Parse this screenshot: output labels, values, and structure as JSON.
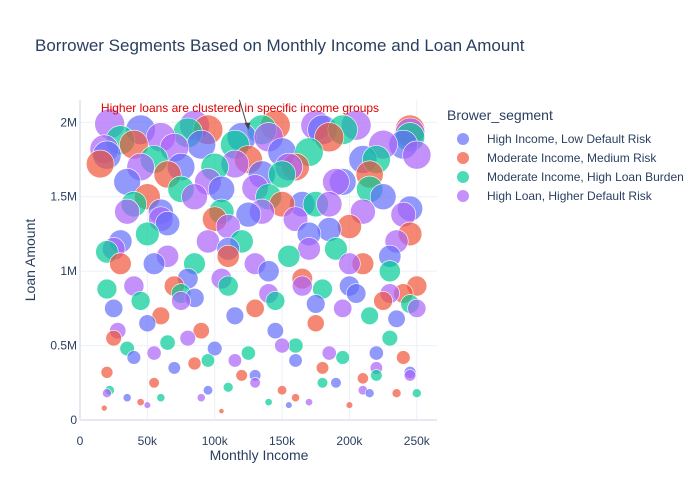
{
  "chart_data": {
    "type": "scatter",
    "title": "Borrower Segments Based on Monthly Income and Loan Amount",
    "xlabel": "Monthly Income",
    "ylabel": "Loan Amount",
    "xlim": [
      0,
      265000
    ],
    "ylim": [
      0,
      2150000
    ],
    "x_ticks": [
      {
        "v": 0,
        "label": "0"
      },
      {
        "v": 50000,
        "label": "50k"
      },
      {
        "v": 100000,
        "label": "100k"
      },
      {
        "v": 150000,
        "label": "150k"
      },
      {
        "v": 200000,
        "label": "200k"
      },
      {
        "v": 250000,
        "label": "250k"
      }
    ],
    "y_ticks": [
      {
        "v": 0,
        "label": "0"
      },
      {
        "v": 500000,
        "label": "0.5M"
      },
      {
        "v": 1000000,
        "label": "1M"
      },
      {
        "v": 1500000,
        "label": "1.5M"
      },
      {
        "v": 2000000,
        "label": "2M"
      }
    ],
    "grid": true,
    "bubble_size_by": "loan_amount",
    "legend": {
      "title": "Brower_segment",
      "placement": "right"
    },
    "annotation": {
      "text": "Higher loans are clustered in specific income groups",
      "x": 125000,
      "y": 1950000,
      "color": "#e00000"
    },
    "series": [
      {
        "name": "High Income, Low Default Risk",
        "color": "#636efa",
        "points": [
          [
            20000,
            1780000
          ],
          [
            35000,
            1600000
          ],
          [
            45000,
            1950000
          ],
          [
            60000,
            1400000
          ],
          [
            75000,
            1700000
          ],
          [
            90000,
            1850000
          ],
          [
            105000,
            1550000
          ],
          [
            120000,
            1900000
          ],
          [
            135000,
            1650000
          ],
          [
            150000,
            1800000
          ],
          [
            165000,
            1450000
          ],
          [
            180000,
            1950000
          ],
          [
            195000,
            1600000
          ],
          [
            210000,
            1750000
          ],
          [
            225000,
            1500000
          ],
          [
            240000,
            1850000
          ],
          [
            30000,
            1200000
          ],
          [
            55000,
            1050000
          ],
          [
            80000,
            950000
          ],
          [
            110000,
            1150000
          ],
          [
            140000,
            1000000
          ],
          [
            170000,
            1250000
          ],
          [
            200000,
            900000
          ],
          [
            230000,
            1100000
          ],
          [
            25000,
            750000
          ],
          [
            50000,
            650000
          ],
          [
            85000,
            820000
          ],
          [
            115000,
            700000
          ],
          [
            145000,
            600000
          ],
          [
            175000,
            780000
          ],
          [
            205000,
            850000
          ],
          [
            235000,
            680000
          ],
          [
            40000,
            420000
          ],
          [
            70000,
            350000
          ],
          [
            100000,
            480000
          ],
          [
            130000,
            300000
          ],
          [
            160000,
            400000
          ],
          [
            190000,
            250000
          ],
          [
            220000,
            450000
          ],
          [
            245000,
            320000
          ],
          [
            35000,
            150000
          ],
          [
            95000,
            200000
          ],
          [
            155000,
            100000
          ],
          [
            215000,
            180000
          ],
          [
            65000,
            1320000
          ],
          [
            125000,
            1380000
          ],
          [
            185000,
            1280000
          ],
          [
            245000,
            1420000
          ]
        ]
      },
      {
        "name": "Moderate Income, Medium Risk",
        "color": "#ef553b",
        "points": [
          [
            15000,
            1720000
          ],
          [
            40000,
            1850000
          ],
          [
            65000,
            1650000
          ],
          [
            95000,
            1950000
          ],
          [
            125000,
            1750000
          ],
          [
            145000,
            1980000
          ],
          [
            160000,
            1700000
          ],
          [
            185000,
            1900000
          ],
          [
            215000,
            1650000
          ],
          [
            245000,
            1950000
          ],
          [
            50000,
            1500000
          ],
          [
            100000,
            1350000
          ],
          [
            150000,
            1450000
          ],
          [
            200000,
            1300000
          ],
          [
            245000,
            1250000
          ],
          [
            30000,
            1050000
          ],
          [
            70000,
            900000
          ],
          [
            110000,
            1100000
          ],
          [
            165000,
            950000
          ],
          [
            210000,
            1050000
          ],
          [
            240000,
            850000
          ],
          [
            25000,
            550000
          ],
          [
            60000,
            700000
          ],
          [
            90000,
            600000
          ],
          [
            130000,
            750000
          ],
          [
            175000,
            650000
          ],
          [
            225000,
            800000
          ],
          [
            250000,
            900000
          ],
          [
            20000,
            320000
          ],
          [
            55000,
            250000
          ],
          [
            85000,
            380000
          ],
          [
            120000,
            300000
          ],
          [
            150000,
            200000
          ],
          [
            180000,
            350000
          ],
          [
            210000,
            280000
          ],
          [
            240000,
            420000
          ],
          [
            18000,
            80000
          ],
          [
            45000,
            120000
          ],
          [
            105000,
            60000
          ],
          [
            160000,
            150000
          ],
          [
            200000,
            100000
          ],
          [
            235000,
            180000
          ]
        ]
      },
      {
        "name": "Moderate Income, High Loan Burden",
        "color": "#00cc96",
        "points": [
          [
            30000,
            1880000
          ],
          [
            55000,
            1750000
          ],
          [
            80000,
            1930000
          ],
          [
            100000,
            1700000
          ],
          [
            115000,
            1850000
          ],
          [
            135000,
            1950000
          ],
          [
            150000,
            1650000
          ],
          [
            170000,
            1800000
          ],
          [
            195000,
            1950000
          ],
          [
            220000,
            1750000
          ],
          [
            245000,
            1900000
          ],
          [
            40000,
            1450000
          ],
          [
            75000,
            1550000
          ],
          [
            105000,
            1400000
          ],
          [
            140000,
            1500000
          ],
          [
            175000,
            1450000
          ],
          [
            215000,
            1550000
          ],
          [
            20000,
            1130000
          ],
          [
            50000,
            1250000
          ],
          [
            85000,
            1050000
          ],
          [
            120000,
            1200000
          ],
          [
            155000,
            1100000
          ],
          [
            190000,
            1150000
          ],
          [
            230000,
            1000000
          ],
          [
            20000,
            880000
          ],
          [
            45000,
            800000
          ],
          [
            75000,
            850000
          ],
          [
            110000,
            900000
          ],
          [
            145000,
            800000
          ],
          [
            180000,
            880000
          ],
          [
            215000,
            700000
          ],
          [
            245000,
            780000
          ],
          [
            35000,
            480000
          ],
          [
            65000,
            520000
          ],
          [
            95000,
            400000
          ],
          [
            125000,
            450000
          ],
          [
            160000,
            500000
          ],
          [
            195000,
            420000
          ],
          [
            230000,
            550000
          ],
          [
            22000,
            200000
          ],
          [
            60000,
            150000
          ],
          [
            110000,
            220000
          ],
          [
            140000,
            120000
          ],
          [
            180000,
            250000
          ],
          [
            220000,
            300000
          ],
          [
            250000,
            180000
          ]
        ]
      },
      {
        "name": "High Loan, Higher Default Risk",
        "color": "#ab63fa",
        "points": [
          [
            18000,
            1820000
          ],
          [
            22000,
            1990000
          ],
          [
            45000,
            1700000
          ],
          [
            60000,
            1900000
          ],
          [
            70000,
            1830000
          ],
          [
            85000,
            1980000
          ],
          [
            95000,
            1600000
          ],
          [
            115000,
            1720000
          ],
          [
            130000,
            1560000
          ],
          [
            140000,
            1900000
          ],
          [
            155000,
            1700000
          ],
          [
            175000,
            1980000
          ],
          [
            190000,
            1600000
          ],
          [
            205000,
            1980000
          ],
          [
            225000,
            1850000
          ],
          [
            245000,
            1930000
          ],
          [
            250000,
            1780000
          ],
          [
            35000,
            1400000
          ],
          [
            60000,
            1350000
          ],
          [
            85000,
            1500000
          ],
          [
            110000,
            1300000
          ],
          [
            135000,
            1400000
          ],
          [
            160000,
            1350000
          ],
          [
            185000,
            1450000
          ],
          [
            210000,
            1400000
          ],
          [
            240000,
            1380000
          ],
          [
            25000,
            1150000
          ],
          [
            65000,
            1100000
          ],
          [
            95000,
            1200000
          ],
          [
            130000,
            1050000
          ],
          [
            170000,
            1150000
          ],
          [
            200000,
            1050000
          ],
          [
            235000,
            1200000
          ],
          [
            40000,
            900000
          ],
          [
            75000,
            800000
          ],
          [
            105000,
            950000
          ],
          [
            140000,
            850000
          ],
          [
            165000,
            900000
          ],
          [
            195000,
            750000
          ],
          [
            230000,
            850000
          ],
          [
            250000,
            750000
          ],
          [
            28000,
            600000
          ],
          [
            55000,
            450000
          ],
          [
            80000,
            550000
          ],
          [
            115000,
            400000
          ],
          [
            150000,
            500000
          ],
          [
            185000,
            450000
          ],
          [
            220000,
            350000
          ],
          [
            20000,
            180000
          ],
          [
            50000,
            100000
          ],
          [
            90000,
            150000
          ],
          [
            130000,
            250000
          ],
          [
            170000,
            120000
          ],
          [
            210000,
            200000
          ],
          [
            245000,
            300000
          ]
        ]
      }
    ]
  }
}
